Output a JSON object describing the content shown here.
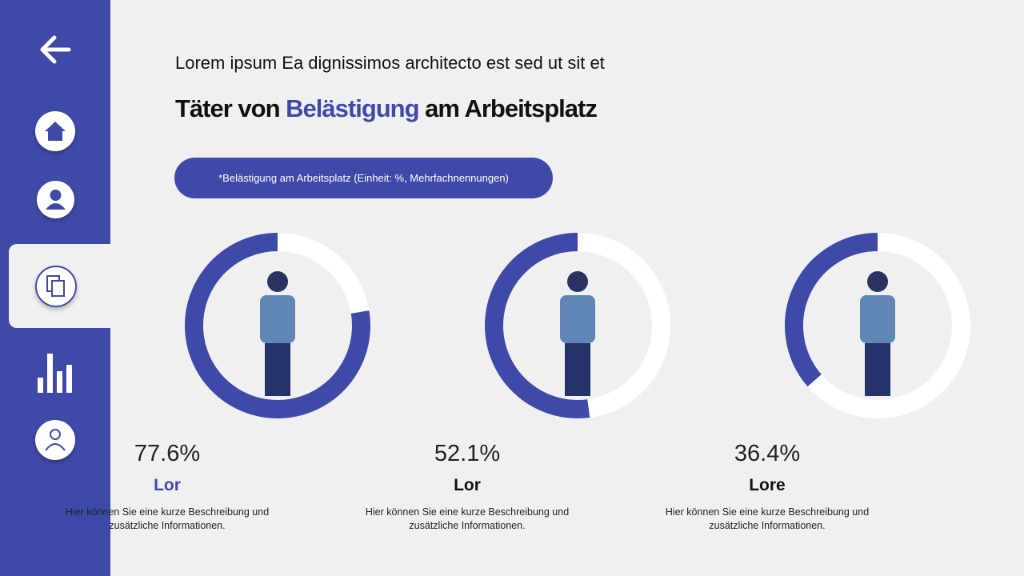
{
  "header": {
    "subtitle": "Lorem ipsum Ea dignissimos architecto est sed ut sit et",
    "title_parts": [
      "Täter von ",
      "Belästigung",
      " am Arbeitsplatz"
    ]
  },
  "note": "*Belästigung am Arbeitsplatz (Einheit: %, Mehrfachnennungen)",
  "chart_data": [
    {
      "type": "donut",
      "values": [
        77.6
      ],
      "value_labels": [
        "77.6%"
      ],
      "color": "#3f4aa8",
      "label": "Lor",
      "label_color": "#3f4aa8",
      "description": "Hier können Sie eine kurze Beschreibung und zusätzliche Informationen."
    },
    {
      "type": "donut",
      "values": [
        52.1
      ],
      "value_labels": [
        "52.1%"
      ],
      "color": "#3f4aa8",
      "label": "Lor",
      "label_color": "#111111",
      "description": "Hier können Sie eine kurze Beschreibung und zusätzliche Informationen."
    },
    {
      "type": "donut",
      "values": [
        36.4
      ],
      "value_labels": [
        "36.4%"
      ],
      "color": "#3f4aa8",
      "label": "Lore",
      "label_color": "#111111",
      "description": "Hier können Sie eine kurze Beschreibung und zusätzliche Informationen."
    }
  ]
}
